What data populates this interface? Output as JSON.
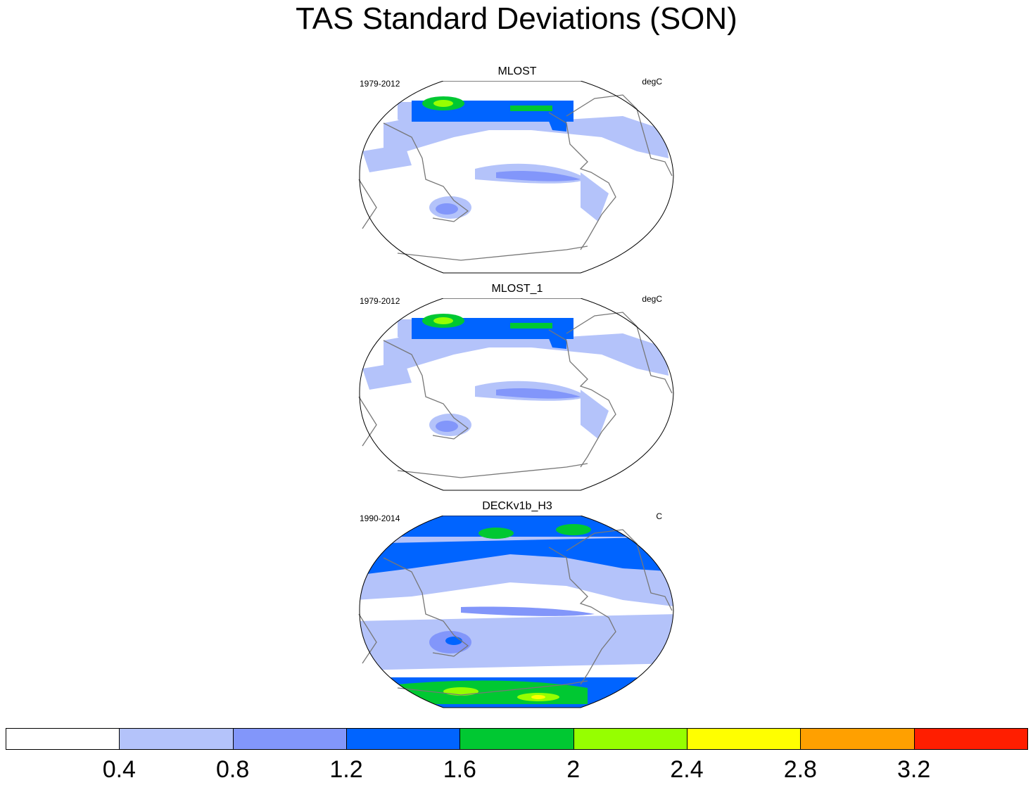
{
  "title": "TAS Standard Deviations (SON)",
  "panels": [
    {
      "name": "MLOST",
      "period": "1979-2012",
      "units": "degC"
    },
    {
      "name": "MLOST_1",
      "period": "1979-2012",
      "units": "degC"
    },
    {
      "name": "DECKv1b_H3",
      "period": "1990-2014",
      "units": "C"
    }
  ],
  "colorbar": {
    "colors": [
      "#ffffff",
      "#b4c3fa",
      "#8296fa",
      "#0064ff",
      "#00c832",
      "#96ff00",
      "#ffff00",
      "#ffa000",
      "#ff1e00"
    ],
    "labels": [
      "0.4",
      "0.8",
      "1.2",
      "1.6",
      "2",
      "2.4",
      "2.8",
      "3.2"
    ]
  }
}
